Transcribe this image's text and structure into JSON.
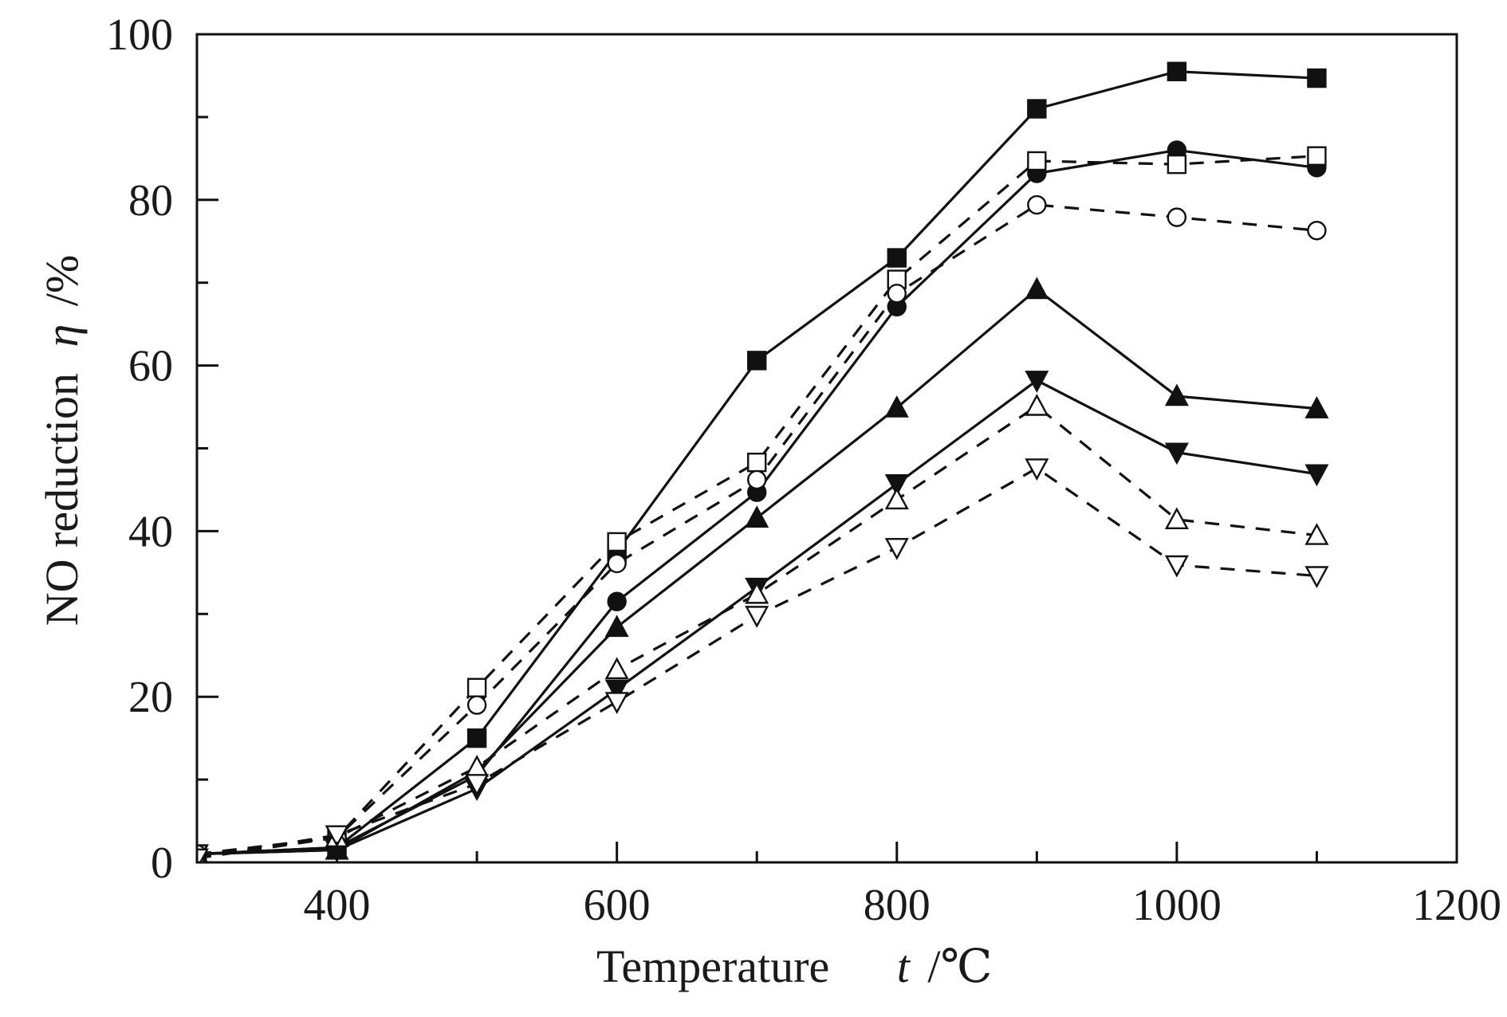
{
  "chart_data": {
    "type": "line",
    "title": "",
    "xlabel": "Temperature",
    "xlabel_symbol": "t",
    "xlabel_unit": "/℃",
    "ylabel": "NO reduction",
    "ylabel_symbol": "η",
    "ylabel_unit": "/%",
    "xlim": [
      300,
      1200
    ],
    "ylim": [
      0,
      100
    ],
    "x_ticks": [
      400,
      600,
      800,
      1000,
      1200
    ],
    "x_minor_ticks": [
      500,
      700,
      900,
      1100
    ],
    "y_ticks": [
      0,
      20,
      40,
      60,
      80,
      100
    ],
    "y_minor_ticks": [
      10,
      30,
      50,
      70,
      90
    ],
    "grid": false,
    "legend": "none",
    "x": [
      300,
      400,
      500,
      600,
      700,
      800,
      900,
      1000,
      1100
    ],
    "series": [
      {
        "name": "filled-square",
        "marker": "square",
        "filled": true,
        "line": "solid",
        "values": [
          1.0,
          1.8,
          15.0,
          37.5,
          60.6,
          73.0,
          91.0,
          95.5,
          94.7
        ]
      },
      {
        "name": "filled-circle",
        "marker": "circle",
        "filled": true,
        "line": "solid",
        "values": [
          1.0,
          1.8,
          10.5,
          31.5,
          44.7,
          67.1,
          83.2,
          86.0,
          83.9
        ]
      },
      {
        "name": "filled-triangle-up",
        "marker": "triangle-up",
        "filled": true,
        "line": "solid",
        "values": [
          1.0,
          1.5,
          11.0,
          28.4,
          41.6,
          54.9,
          69.2,
          56.3,
          54.8
        ]
      },
      {
        "name": "filled-triangle-down",
        "marker": "triangle-down",
        "filled": true,
        "line": "solid",
        "values": [
          1.0,
          1.5,
          8.9,
          20.9,
          33.2,
          45.7,
          58.2,
          49.5,
          46.9
        ]
      },
      {
        "name": "open-square",
        "marker": "square",
        "filled": false,
        "line": "dashed",
        "values": [
          1.0,
          3.0,
          21.1,
          38.7,
          48.3,
          70.4,
          84.7,
          84.3,
          85.3
        ]
      },
      {
        "name": "open-circle",
        "marker": "circle",
        "filled": false,
        "line": "dashed",
        "values": [
          1.0,
          3.0,
          19.0,
          36.1,
          46.2,
          68.7,
          79.4,
          77.9,
          76.3
        ]
      },
      {
        "name": "open-triangle-up",
        "marker": "triangle-up",
        "filled": false,
        "line": "dashed",
        "values": [
          0.5,
          3.0,
          11.5,
          23.3,
          32.4,
          43.8,
          55.1,
          41.4,
          39.5
        ]
      },
      {
        "name": "open-triangle-down",
        "marker": "triangle-down",
        "filled": false,
        "line": "dashed",
        "values": [
          0.5,
          3.3,
          9.5,
          19.4,
          29.8,
          38.0,
          47.6,
          35.9,
          34.6
        ]
      }
    ],
    "colors": {
      "ink": "#111111",
      "background": "#ffffff"
    }
  }
}
